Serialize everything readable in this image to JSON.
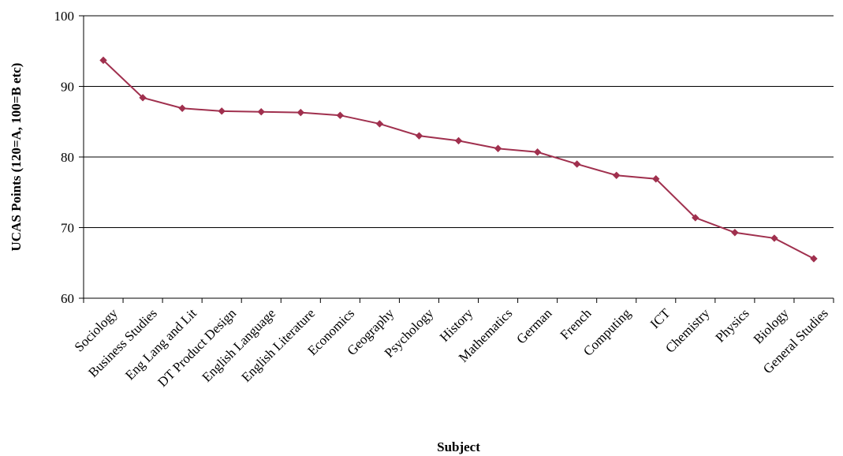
{
  "chart_data": {
    "type": "line",
    "title": "",
    "xlabel": "Subject",
    "ylabel": "UCAS Points (120=A, 100=B etc)",
    "ylim": [
      60,
      100
    ],
    "yticks": [
      "60",
      "70",
      "80",
      "90",
      "100"
    ],
    "categories": [
      "Sociology",
      "Business Studies",
      "Eng Lang and Lit",
      "DT Product Design",
      "English Language",
      "English Literature",
      "Economics",
      "Geography",
      "Psychology",
      "History",
      "Mathematics",
      "German",
      "French",
      "Computing",
      "ICT",
      "Chemistry",
      "Physics",
      "Biology",
      "General Studies"
    ],
    "series": [
      {
        "values": [
          93.7,
          88.4,
          86.9,
          86.5,
          86.4,
          86.3,
          85.9,
          84.7,
          83.0,
          82.3,
          81.2,
          80.7,
          79.0,
          77.4,
          76.9,
          71.4,
          69.3,
          68.5,
          65.6
        ]
      }
    ],
    "grid": true,
    "legend": "none",
    "line_color": "#A0304E"
  }
}
